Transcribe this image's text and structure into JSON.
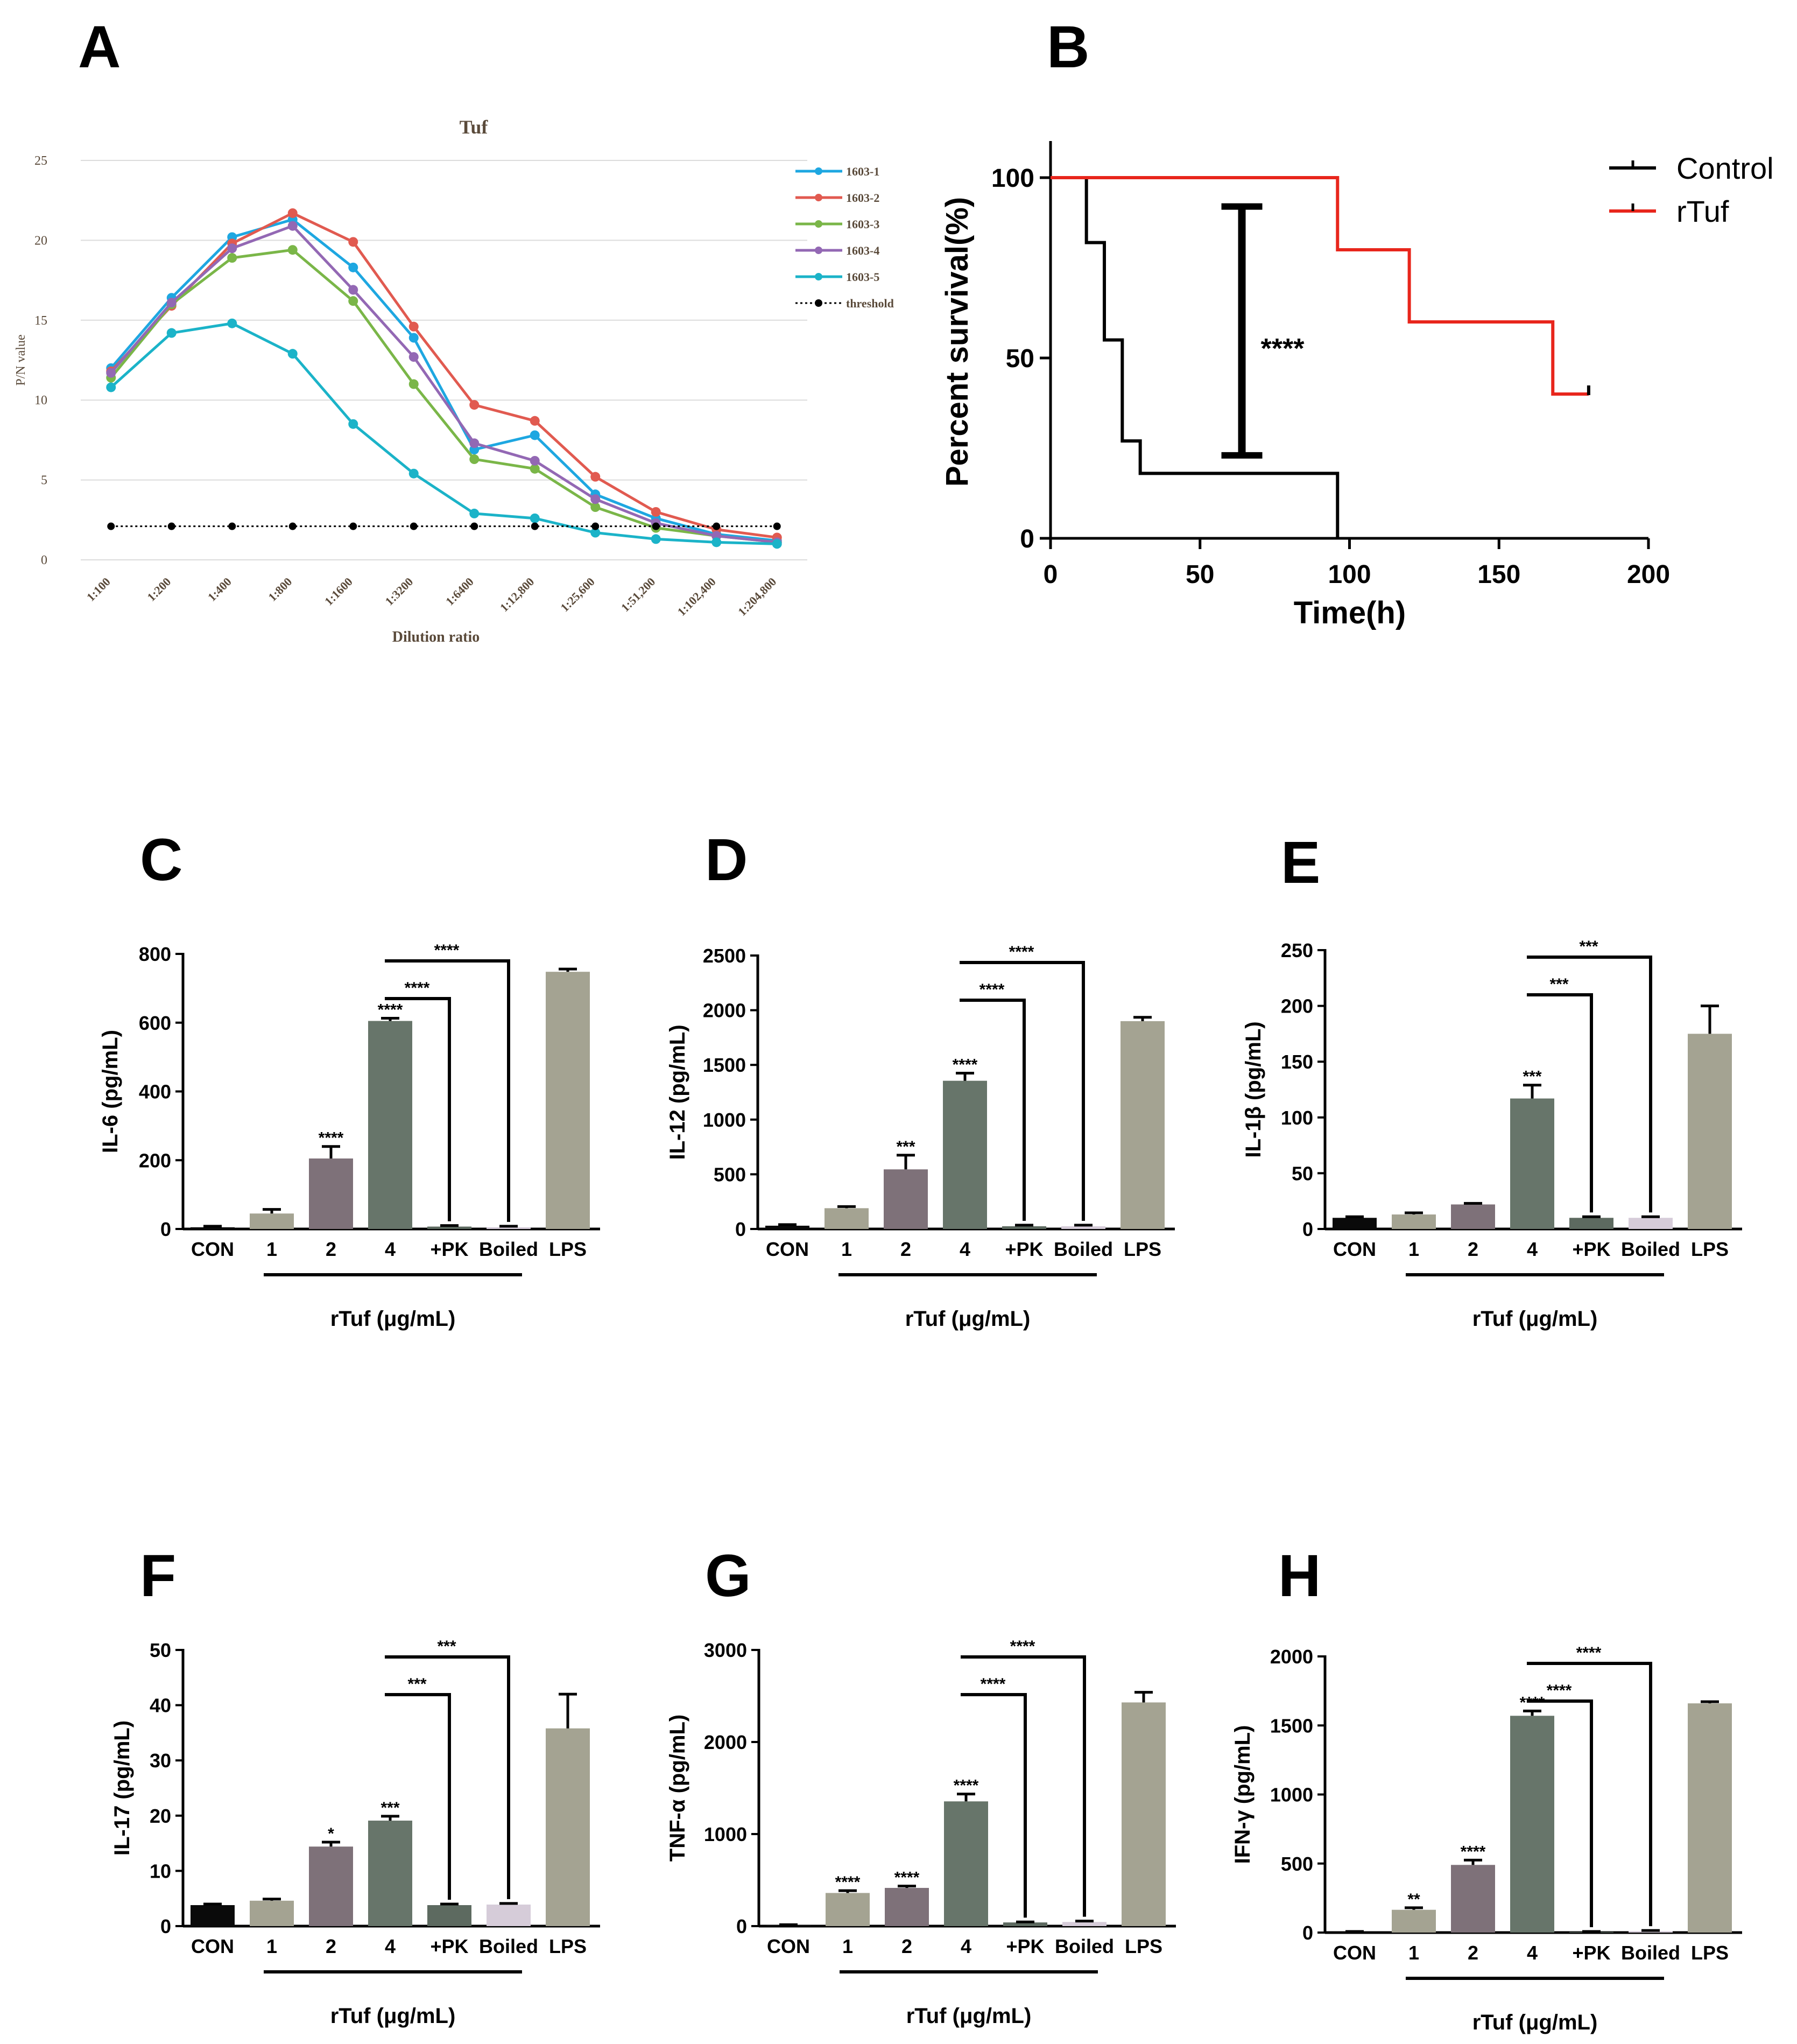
{
  "panel_labels": [
    "A",
    "B",
    "C",
    "D",
    "E",
    "F",
    "G",
    "H"
  ],
  "chart_data": [
    {
      "id": "A",
      "type": "line",
      "title": "Tuf",
      "xlabel": "Dilution ratio",
      "ylabel": "P/N value",
      "categories": [
        "1:100",
        "1:200",
        "1:400",
        "1:800",
        "1:1600",
        "1:3200",
        "1:6400",
        "1:12,800",
        "1:25,600",
        "1:51,200",
        "1:102,400",
        "1:204,800"
      ],
      "ylim": [
        0,
        25
      ],
      "yticks": [
        "0",
        "5",
        "10",
        "15",
        "20",
        "25"
      ],
      "series": [
        {
          "name": "1603-1",
          "color": "#1ea7e1",
          "values": [
            12.0,
            16.4,
            20.2,
            21.3,
            18.3,
            13.9,
            6.9,
            7.8,
            4.1,
            2.6,
            1.6,
            1.2
          ]
        },
        {
          "name": "1603-2",
          "color": "#e15a50",
          "values": [
            11.8,
            15.9,
            19.8,
            21.7,
            19.9,
            14.6,
            9.7,
            8.7,
            5.2,
            3.0,
            1.9,
            1.4
          ]
        },
        {
          "name": "1603-3",
          "color": "#7ab648",
          "values": [
            11.4,
            16.0,
            18.9,
            19.4,
            16.2,
            11.0,
            6.3,
            5.7,
            3.3,
            2.0,
            1.5,
            1.1
          ]
        },
        {
          "name": "1603-4",
          "color": "#9368b4",
          "values": [
            11.7,
            16.1,
            19.5,
            20.9,
            16.9,
            12.7,
            7.3,
            6.2,
            3.8,
            2.3,
            1.5,
            1.1
          ]
        },
        {
          "name": "1603-5",
          "color": "#1bb3c8",
          "values": [
            10.8,
            14.2,
            14.8,
            12.9,
            8.5,
            5.4,
            2.9,
            2.6,
            1.7,
            1.3,
            1.1,
            1.0
          ]
        },
        {
          "name": "threshold",
          "color": "#000000",
          "dotted": true,
          "values": [
            2.1,
            2.1,
            2.1,
            2.1,
            2.1,
            2.1,
            2.1,
            2.1,
            2.1,
            2.1,
            2.1,
            2.1
          ]
        }
      ],
      "legend_position": "top-right"
    },
    {
      "id": "B",
      "type": "survival",
      "xlabel": "Time(h)",
      "ylabel": "Percent survival(%)",
      "xlim": [
        0,
        200
      ],
      "ylim": [
        0,
        100
      ],
      "xticks": [
        "0",
        "50",
        "100",
        "150",
        "200"
      ],
      "yticks": [
        "0",
        "50",
        "100"
      ],
      "series": [
        {
          "name": "Control",
          "color": "#000000",
          "steps": [
            [
              0,
              100
            ],
            [
              12,
              82
            ],
            [
              18,
              55
            ],
            [
              24,
              27
            ],
            [
              30,
              18
            ],
            [
              96,
              0
            ]
          ]
        },
        {
          "name": "rTuf",
          "color": "#e8261c",
          "steps": [
            [
              0,
              100
            ],
            [
              96,
              80
            ],
            [
              120,
              60
            ],
            [
              168,
              40
            ],
            [
              180,
              40
            ]
          ]
        }
      ],
      "censor_marks": [
        {
          "series": "rTuf",
          "x": 180,
          "y": 40
        }
      ],
      "significance": {
        "label": "****",
        "x": 64,
        "y_low": 23,
        "y_high": 92
      },
      "legend_position": "top-right"
    },
    {
      "id": "C",
      "type": "bar",
      "ylabel": "IL-6 (pg/mL)",
      "ylim": [
        0,
        800
      ],
      "yticks": [
        "0",
        "200",
        "400",
        "600",
        "800"
      ],
      "categories": [
        "CON",
        "1",
        "2",
        "4",
        "+PK",
        "Boiled",
        "LPS"
      ],
      "values": [
        5,
        45,
        205,
        605,
        7,
        5,
        748
      ],
      "errors": [
        3,
        12,
        35,
        8,
        3,
        3,
        8
      ],
      "stars": [
        "",
        "",
        "****",
        "****",
        "",
        "",
        ""
      ],
      "brackets": [
        {
          "from": 3,
          "to": 4,
          "label": "****"
        },
        {
          "from": 3,
          "to": 5,
          "label": "****"
        }
      ],
      "group_label": "rTuf (μg/mL)"
    },
    {
      "id": "D",
      "type": "bar",
      "ylabel": "IL-12 (pg/mL)",
      "ylim": [
        0,
        2500
      ],
      "yticks": [
        "0",
        "500",
        "1000",
        "1500",
        "2000",
        "2500"
      ],
      "categories": [
        "CON",
        "1",
        "2",
        "4",
        "+PK",
        "Boiled",
        "LPS"
      ],
      "values": [
        30,
        190,
        545,
        1355,
        25,
        25,
        1900
      ],
      "errors": [
        10,
        15,
        130,
        70,
        10,
        10,
        35
      ],
      "stars": [
        "",
        "",
        "***",
        "****",
        "",
        "",
        ""
      ],
      "brackets": [
        {
          "from": 3,
          "to": 4,
          "label": "****"
        },
        {
          "from": 3,
          "to": 5,
          "label": "****"
        }
      ],
      "group_label": "rTuf (μg/mL)"
    },
    {
      "id": "E",
      "type": "bar",
      "ylabel": "IL-1β (pg/mL)",
      "ylim": [
        0,
        250
      ],
      "yticks": [
        "0",
        "50",
        "100",
        "150",
        "200",
        "250"
      ],
      "categories": [
        "CON",
        "1",
        "2",
        "4",
        "+PK",
        "Boiled",
        "LPS"
      ],
      "values": [
        10,
        13,
        22,
        117,
        10,
        10,
        175
      ],
      "errors": [
        1,
        1.5,
        1,
        12,
        1,
        1,
        25
      ],
      "stars": [
        "",
        "",
        "",
        "***",
        "",
        "",
        ""
      ],
      "brackets": [
        {
          "from": 3,
          "to": 4,
          "label": "***"
        },
        {
          "from": 3,
          "to": 5,
          "label": "***"
        }
      ],
      "group_label": "rTuf (μg/mL)"
    },
    {
      "id": "F",
      "type": "bar",
      "ylabel": "IL-17 (pg/mL)",
      "ylim": [
        0,
        50
      ],
      "yticks": [
        "0",
        "10",
        "20",
        "30",
        "40",
        "50"
      ],
      "categories": [
        "CON",
        "1",
        "2",
        "4",
        "+PK",
        "Boiled",
        "LPS"
      ],
      "values": [
        3.8,
        4.6,
        14.4,
        19.1,
        3.8,
        3.9,
        35.8
      ],
      "errors": [
        0.2,
        0.3,
        0.8,
        0.8,
        0.2,
        0.2,
        6.2
      ],
      "stars": [
        "",
        "",
        "*",
        "***",
        "",
        "",
        ""
      ],
      "brackets": [
        {
          "from": 3,
          "to": 4,
          "label": "***"
        },
        {
          "from": 3,
          "to": 5,
          "label": "***"
        }
      ],
      "group_label": "rTuf (μg/mL)"
    },
    {
      "id": "G",
      "type": "bar",
      "ylabel": "TNF-α (pg/mL)",
      "ylim": [
        0,
        3000
      ],
      "yticks": [
        "0",
        "1000",
        "2000",
        "3000"
      ],
      "categories": [
        "CON",
        "1",
        "2",
        "4",
        "+PK",
        "Boiled",
        "LPS"
      ],
      "values": [
        10,
        360,
        415,
        1355,
        40,
        45,
        2430
      ],
      "errors": [
        5,
        25,
        20,
        80,
        5,
        10,
        110
      ],
      "stars": [
        "",
        "****",
        "****",
        "****",
        "",
        "",
        ""
      ],
      "brackets": [
        {
          "from": 3,
          "to": 4,
          "label": "****"
        },
        {
          "from": 3,
          "to": 5,
          "label": "****"
        }
      ],
      "group_label": "rTuf (μg/mL)"
    },
    {
      "id": "H",
      "type": "bar",
      "ylabel": "IFN-γ (pg/mL)",
      "ylim": [
        0,
        2000
      ],
      "yticks": [
        "0",
        "500",
        "1000",
        "1500",
        "2000"
      ],
      "categories": [
        "CON",
        "1",
        "2",
        "4",
        "+PK",
        "Boiled",
        "LPS"
      ],
      "values": [
        5,
        165,
        490,
        1570,
        5,
        10,
        1660
      ],
      "errors": [
        3,
        15,
        35,
        35,
        3,
        5,
        12
      ],
      "stars": [
        "",
        "**",
        "****",
        "****",
        "",
        "",
        ""
      ],
      "brackets": [
        {
          "from": 3,
          "to": 4,
          "label": "****"
        },
        {
          "from": 3,
          "to": 5,
          "label": "****"
        }
      ],
      "group_label": "rTuf (μg/mL)"
    }
  ],
  "bar_colors": [
    "#0a0a0a",
    "#a4a392",
    "#7e7179",
    "#67756a",
    "#5d6a60",
    "#d6ccd9",
    "#a4a392"
  ]
}
